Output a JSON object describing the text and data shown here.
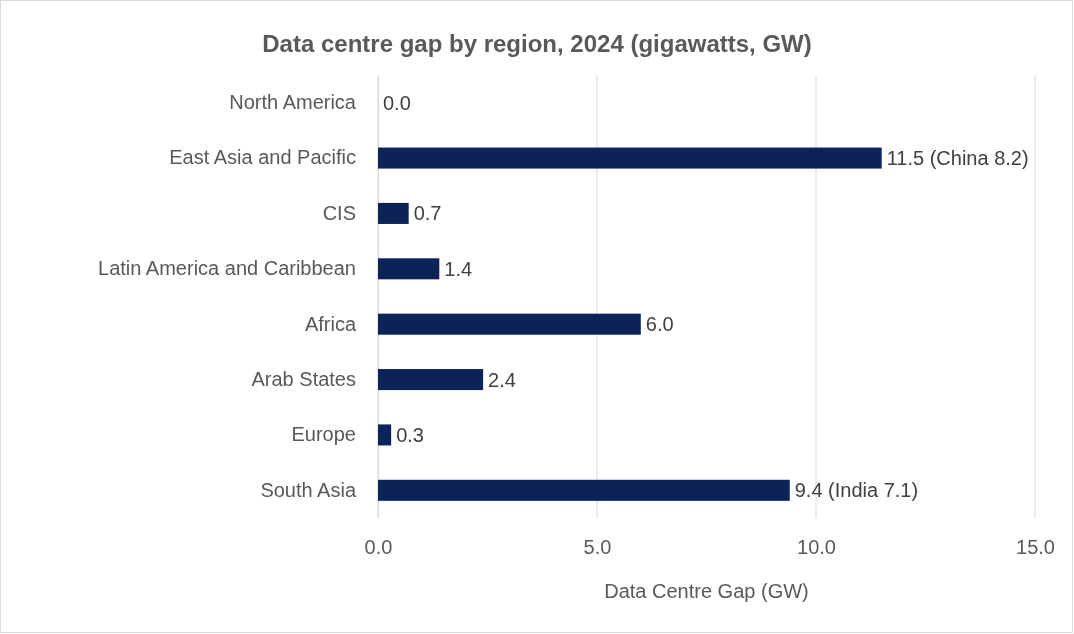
{
  "chart_data": {
    "type": "bar",
    "orientation": "horizontal",
    "title": "Data centre gap by region, 2024 (gigawatts, GW)",
    "xlabel": "Data Centre Gap (GW)",
    "categories": [
      "North America",
      "East Asia and Pacific",
      "CIS",
      "Latin America and Caribbean",
      "Africa",
      "Arab States",
      "Europe",
      "South Asia"
    ],
    "values": [
      0,
      11.5,
      0.7,
      1.4,
      6.0,
      2.4,
      0.3,
      9.4
    ],
    "value_labels": [
      "0.0",
      "11.5 (China 8.2)",
      "0.7",
      "1.4",
      "6.0",
      "2.4",
      "0.3",
      "9.4 (India 7.1)"
    ],
    "color": "#0c2359",
    "xlim": [
      0,
      15
    ],
    "xticks": [
      {
        "value": 0,
        "label": "0.0"
      },
      {
        "value": 5,
        "label": "5.0"
      },
      {
        "value": 10,
        "label": "10.0"
      },
      {
        "value": 15,
        "label": "15.0"
      }
    ],
    "grid": "x"
  }
}
